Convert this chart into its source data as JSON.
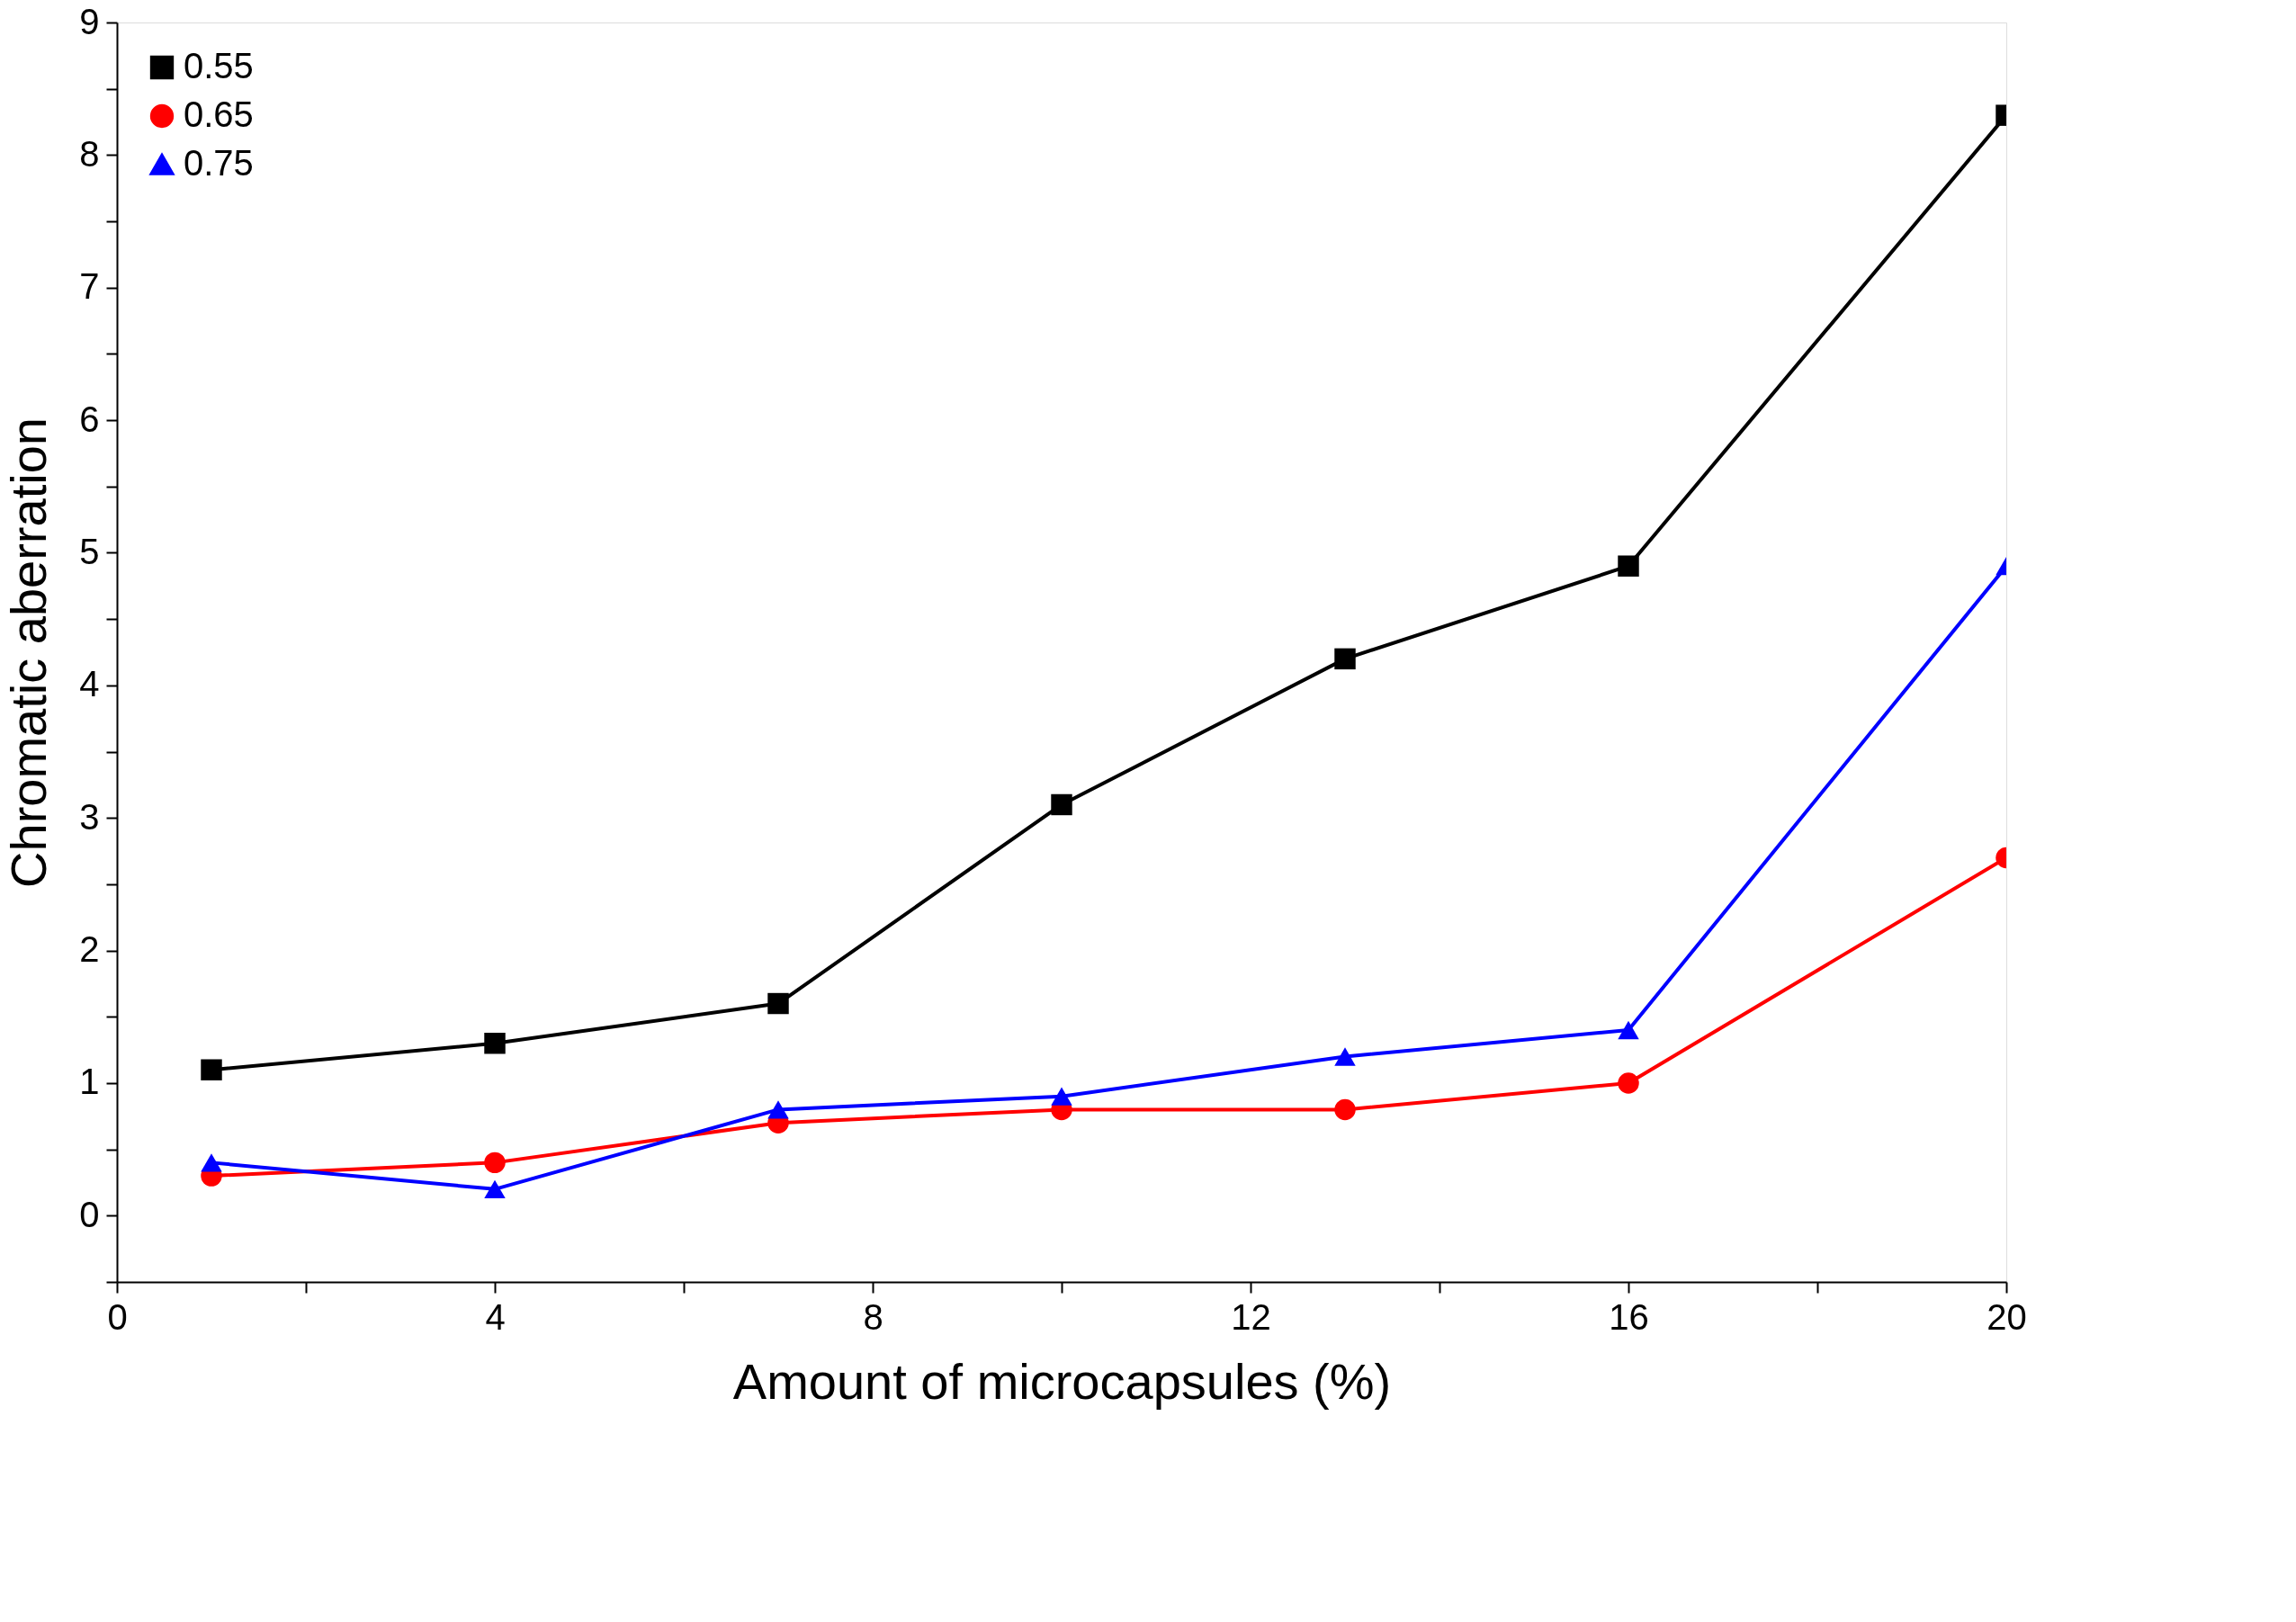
{
  "chart_data": {
    "type": "line",
    "xlabel": "Amount of microcapsules (%)",
    "ylabel": "Chromatic aberration",
    "x": [
      1,
      4,
      7,
      10,
      13,
      16,
      20
    ],
    "series": [
      {
        "name": "0.55",
        "color": "#000000",
        "marker": "square",
        "values": [
          1.1,
          1.3,
          1.6,
          3.1,
          4.2,
          4.9,
          8.3
        ]
      },
      {
        "name": "0.65",
        "color": "#ff0000",
        "marker": "circle",
        "values": [
          0.3,
          0.4,
          0.7,
          0.8,
          0.8,
          1.0,
          2.7
        ]
      },
      {
        "name": "0.75",
        "color": "#0000ff",
        "marker": "triangle",
        "values": [
          0.4,
          0.2,
          0.8,
          0.9,
          1.2,
          1.4,
          4.9
        ]
      }
    ],
    "xlim": [
      0,
      20
    ],
    "xticks": [
      0,
      {
        "value": 2,
        "label": null
      },
      4,
      {
        "value": 6,
        "label": null
      },
      8,
      {
        "value": 10,
        "label": null
      },
      12,
      {
        "value": 14,
        "label": null
      },
      16,
      {
        "value": 18,
        "label": null
      },
      20
    ],
    "ylim": [
      -0.5,
      9
    ],
    "yticks": [
      {
        "value": -0.5,
        "label": null
      },
      0,
      {
        "value": 0.5,
        "label": null
      },
      1,
      {
        "value": 1.5,
        "label": null
      },
      2,
      {
        "value": 2.5,
        "label": null
      },
      3,
      {
        "value": 3.5,
        "label": null
      },
      4,
      {
        "value": 4.5,
        "label": null
      },
      5,
      {
        "value": 5.5,
        "label": null
      },
      6,
      {
        "value": 6.5,
        "label": null
      },
      7,
      {
        "value": 7.5,
        "label": null
      },
      8,
      {
        "value": 8.5,
        "label": null
      },
      9
    ],
    "grid": false,
    "legend": "top left",
    "line_style": "solid"
  }
}
